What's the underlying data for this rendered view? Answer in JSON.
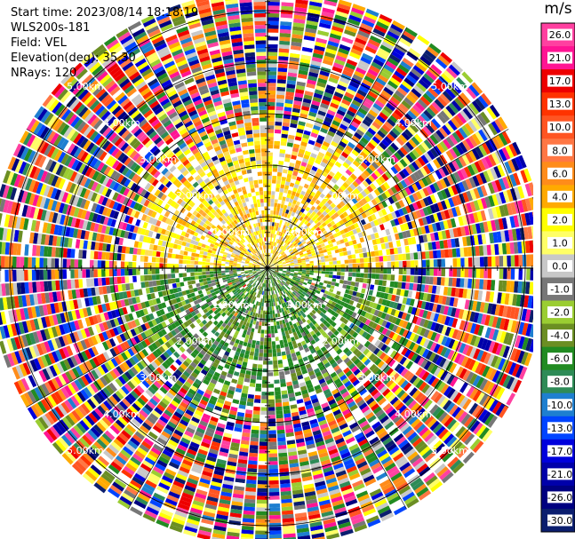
{
  "header": {
    "start_time": "Start time: 2023/08/14 18:18:19",
    "site": "WLS200s-181",
    "field": "Field: VEL",
    "elevation": "Elevation(deg): 35.30",
    "nrays": "NRays: 120"
  },
  "chart_data": {
    "type": "ppi-polar",
    "field": "VEL",
    "units": "m/s",
    "n_rays": 120,
    "range_rings_km": [
      1.0,
      2.0,
      3.0,
      4.0,
      5.0
    ],
    "range_ring_label_rotation_suffix": "km",
    "range_ring_labels": [
      "1.00km",
      "2.00km",
      "3.00km",
      "4.00km",
      "5.00km"
    ],
    "max_range_km": 5.4,
    "colorbar": {
      "title": "m/s",
      "ticks": [
        "26.0",
        "21.0",
        "17.0",
        "13.0",
        "10.0",
        "8.0",
        "6.0",
        "4.0",
        "2.0",
        "1.0",
        "0.0",
        "-1.0",
        "-2.0",
        "-4.0",
        "-6.0",
        "-8.0",
        "-10.0",
        "-13.0",
        "-17.0",
        "-21.0",
        "-26.0",
        "-30.0"
      ],
      "colors": [
        "#ff40a0",
        "#ff1493",
        "#ee0000",
        "#ff3300",
        "#ff5522",
        "#ff7744",
        "#ff8c1a",
        "#ffaa00",
        "#ffff00",
        "#ffff66",
        "#c8c8c8",
        "#777777",
        "#9acd32",
        "#6b8e23",
        "#228b22",
        "#2e8b57",
        "#1e7fd0",
        "#0044ff",
        "#0000dd",
        "#0000aa",
        "#000080",
        "#0b1e6e"
      ]
    },
    "pattern": {
      "inner_radius_km": 0.0,
      "ordered_radius_km": 2.7,
      "north_half_velocity": "positive (yellow/orange, 0 to 4 m/s)",
      "south_half_velocity": "negative (green, -2 to -6 m/s)",
      "beyond_ordered_radius": "noise (random colors)"
    }
  }
}
